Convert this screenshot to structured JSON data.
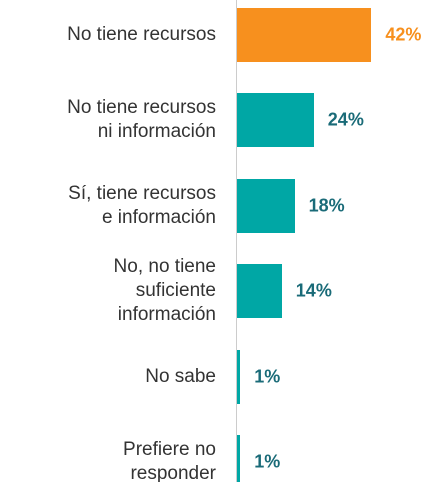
{
  "chart_data": {
    "type": "bar",
    "orientation": "horizontal",
    "categories": [
      "No tiene recursos",
      "No tiene recursos\nni información",
      "Sí, tiene recursos\ne información",
      "No, no tiene\nsuficiente\ninformación",
      "No sabe",
      "Prefiere no\nresponder"
    ],
    "values": [
      42,
      24,
      18,
      14,
      1,
      1
    ],
    "value_labels": [
      "42%",
      "24%",
      "18%",
      "14%",
      "1%",
      "1%"
    ],
    "colors": [
      "#f7901e",
      "#00a7a5",
      "#00a7a5",
      "#00a7a5",
      "#00a7a5",
      "#00a7a5"
    ],
    "label_colors": [
      "#f7901e",
      "#1a6b78",
      "#1a6b78",
      "#1a6b78",
      "#1a6b78",
      "#1a6b78"
    ],
    "xlim": [
      0,
      60
    ]
  }
}
